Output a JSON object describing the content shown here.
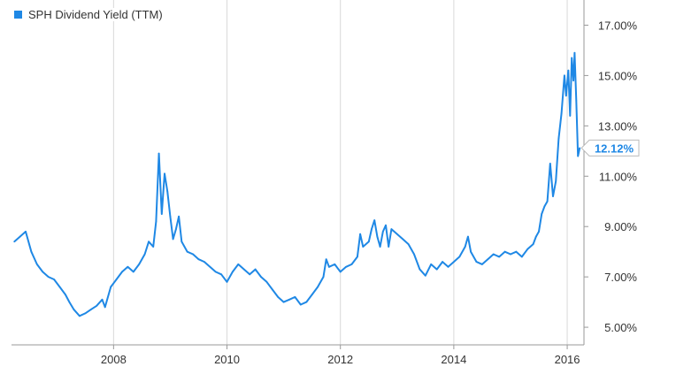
{
  "chart_data": {
    "type": "line",
    "legend": {
      "label": "SPH Dividend Yield (TTM)",
      "placement": "top-left"
    },
    "series": [
      {
        "name": "SPH Dividend Yield (TTM)",
        "color": "#1f88e5",
        "last_value_label": "12.12%",
        "points": [
          [
            2006.25,
            8.4
          ],
          [
            2006.35,
            8.6
          ],
          [
            2006.45,
            8.8
          ],
          [
            2006.55,
            8.0
          ],
          [
            2006.65,
            7.5
          ],
          [
            2006.75,
            7.2
          ],
          [
            2006.85,
            7.0
          ],
          [
            2006.95,
            6.9
          ],
          [
            2007.05,
            6.6
          ],
          [
            2007.15,
            6.3
          ],
          [
            2007.22,
            6.0
          ],
          [
            2007.3,
            5.7
          ],
          [
            2007.4,
            5.45
          ],
          [
            2007.5,
            5.55
          ],
          [
            2007.6,
            5.7
          ],
          [
            2007.7,
            5.85
          ],
          [
            2007.8,
            6.1
          ],
          [
            2007.85,
            5.8
          ],
          [
            2007.95,
            6.6
          ],
          [
            2008.05,
            6.9
          ],
          [
            2008.15,
            7.2
          ],
          [
            2008.25,
            7.4
          ],
          [
            2008.35,
            7.2
          ],
          [
            2008.45,
            7.5
          ],
          [
            2008.55,
            7.9
          ],
          [
            2008.62,
            8.4
          ],
          [
            2008.7,
            8.2
          ],
          [
            2008.75,
            9.2
          ],
          [
            2008.8,
            11.9
          ],
          [
            2008.85,
            9.5
          ],
          [
            2008.9,
            11.1
          ],
          [
            2008.95,
            10.4
          ],
          [
            2009.0,
            9.4
          ],
          [
            2009.05,
            8.5
          ],
          [
            2009.1,
            8.9
          ],
          [
            2009.15,
            9.4
          ],
          [
            2009.2,
            8.4
          ],
          [
            2009.3,
            8.0
          ],
          [
            2009.4,
            7.9
          ],
          [
            2009.5,
            7.7
          ],
          [
            2009.6,
            7.6
          ],
          [
            2009.7,
            7.4
          ],
          [
            2009.8,
            7.2
          ],
          [
            2009.9,
            7.1
          ],
          [
            2010.0,
            6.8
          ],
          [
            2010.1,
            7.2
          ],
          [
            2010.2,
            7.5
          ],
          [
            2010.3,
            7.3
          ],
          [
            2010.4,
            7.1
          ],
          [
            2010.5,
            7.3
          ],
          [
            2010.6,
            7.0
          ],
          [
            2010.7,
            6.8
          ],
          [
            2010.8,
            6.5
          ],
          [
            2010.9,
            6.2
          ],
          [
            2011.0,
            6.0
          ],
          [
            2011.1,
            6.1
          ],
          [
            2011.2,
            6.2
          ],
          [
            2011.3,
            5.9
          ],
          [
            2011.4,
            6.0
          ],
          [
            2011.5,
            6.3
          ],
          [
            2011.6,
            6.6
          ],
          [
            2011.7,
            7.0
          ],
          [
            2011.75,
            7.7
          ],
          [
            2011.8,
            7.4
          ],
          [
            2011.9,
            7.5
          ],
          [
            2012.0,
            7.2
          ],
          [
            2012.1,
            7.4
          ],
          [
            2012.2,
            7.5
          ],
          [
            2012.3,
            7.8
          ],
          [
            2012.35,
            8.7
          ],
          [
            2012.4,
            8.2
          ],
          [
            2012.5,
            8.4
          ],
          [
            2012.55,
            8.9
          ],
          [
            2012.6,
            9.25
          ],
          [
            2012.65,
            8.6
          ],
          [
            2012.7,
            8.2
          ],
          [
            2012.75,
            8.8
          ],
          [
            2012.8,
            9.05
          ],
          [
            2012.85,
            8.2
          ],
          [
            2012.9,
            8.9
          ],
          [
            2013.0,
            8.7
          ],
          [
            2013.1,
            8.5
          ],
          [
            2013.2,
            8.3
          ],
          [
            2013.3,
            7.9
          ],
          [
            2013.4,
            7.3
          ],
          [
            2013.5,
            7.05
          ],
          [
            2013.6,
            7.5
          ],
          [
            2013.7,
            7.3
          ],
          [
            2013.8,
            7.6
          ],
          [
            2013.9,
            7.4
          ],
          [
            2014.0,
            7.6
          ],
          [
            2014.1,
            7.8
          ],
          [
            2014.2,
            8.2
          ],
          [
            2014.25,
            8.6
          ],
          [
            2014.3,
            8.0
          ],
          [
            2014.4,
            7.6
          ],
          [
            2014.5,
            7.5
          ],
          [
            2014.6,
            7.7
          ],
          [
            2014.7,
            7.9
          ],
          [
            2014.8,
            7.8
          ],
          [
            2014.9,
            8.0
          ],
          [
            2015.0,
            7.9
          ],
          [
            2015.1,
            8.0
          ],
          [
            2015.2,
            7.8
          ],
          [
            2015.3,
            8.1
          ],
          [
            2015.4,
            8.3
          ],
          [
            2015.45,
            8.6
          ],
          [
            2015.5,
            8.8
          ],
          [
            2015.55,
            9.5
          ],
          [
            2015.6,
            9.8
          ],
          [
            2015.65,
            10.0
          ],
          [
            2015.7,
            11.5
          ],
          [
            2015.75,
            10.2
          ],
          [
            2015.8,
            10.8
          ],
          [
            2015.85,
            12.5
          ],
          [
            2015.9,
            13.5
          ],
          [
            2015.95,
            15.0
          ],
          [
            2015.98,
            14.2
          ],
          [
            2016.02,
            15.2
          ],
          [
            2016.05,
            13.4
          ],
          [
            2016.08,
            15.7
          ],
          [
            2016.11,
            14.8
          ],
          [
            2016.13,
            15.9
          ],
          [
            2016.16,
            14.0
          ],
          [
            2016.19,
            11.8
          ],
          [
            2016.22,
            12.12
          ]
        ]
      }
    ],
    "x_axis": {
      "min": 2006.2,
      "max": 2016.28,
      "ticks": [
        2008,
        2010,
        2012,
        2014,
        2016
      ]
    },
    "y_axis": {
      "min": 4.3,
      "max": 18.0,
      "position": "right",
      "ticks": [
        5.0,
        7.0,
        9.0,
        11.0,
        13.0,
        15.0,
        17.0
      ],
      "tick_labels": [
        "5.00%",
        "7.00%",
        "9.00%",
        "11.00%",
        "13.00%",
        "15.00%",
        "17.00%"
      ]
    },
    "grid": "vertical-only",
    "colors": {
      "line": "#1f88e5",
      "grid": "#d9d9d9",
      "axis": "#999999",
      "text": "#333333"
    }
  }
}
